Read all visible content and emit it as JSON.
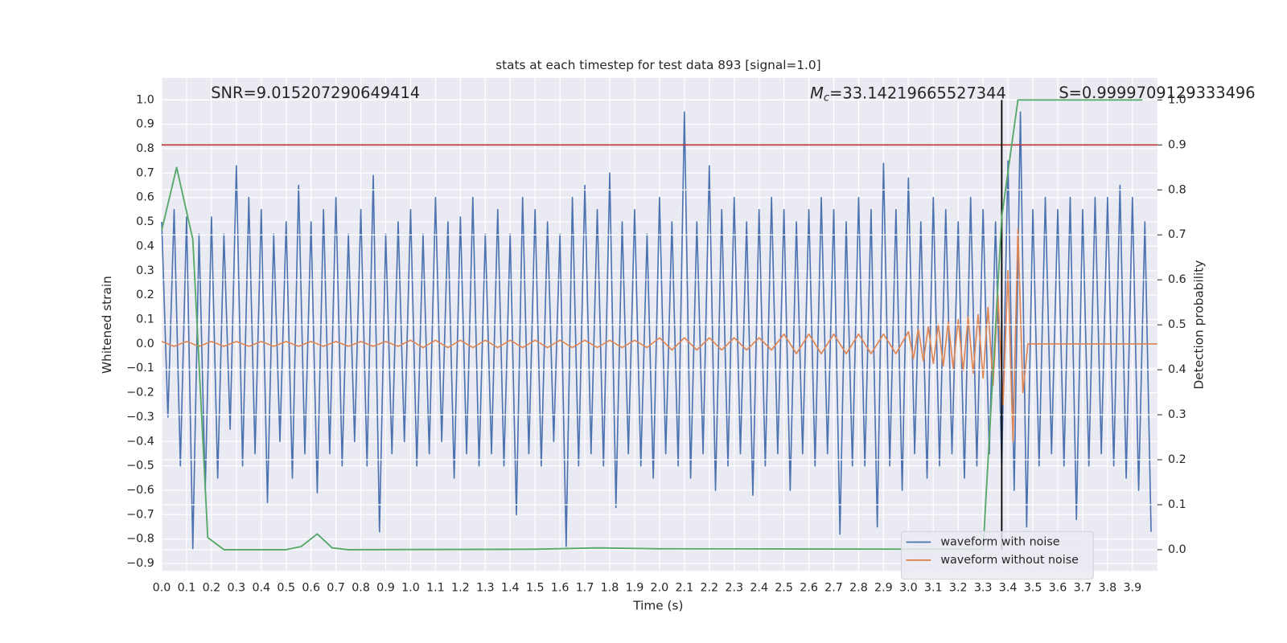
{
  "chart_data": {
    "type": "line",
    "title": "stats at each timestep for test data 893 [signal=1.0]",
    "x_label": "Time (s)",
    "y_label": "Whitened strain",
    "y2_label": "Detection probability",
    "snr_text": "SNR=9.015207290649414",
    "mc_symbol": "M",
    "mc_subscript": "c",
    "mc_value": "=33.14219665527344",
    "s_text": "S=0.9999709129333496",
    "xlim": [
      0,
      4.0
    ],
    "ylim": [
      -0.93,
      1.09
    ],
    "y2lim": [
      -0.047,
      1.049
    ],
    "grid": true,
    "legend": "lower right",
    "threshold": {
      "y2": 0.9,
      "color": "#c03434"
    },
    "marker_time": {
      "x": 3.375,
      "color": "#000000"
    },
    "xticks": [
      {
        "value": 0,
        "label": "0.0"
      },
      {
        "value": 0.1,
        "label": "0.1"
      },
      {
        "value": 0.2,
        "label": "0.2"
      },
      {
        "value": 0.3,
        "label": "0.3"
      },
      {
        "value": 0.4,
        "label": "0.4"
      },
      {
        "value": 0.5,
        "label": "0.5"
      },
      {
        "value": 0.6,
        "label": "0.6"
      },
      {
        "value": 0.7,
        "label": "0.7"
      },
      {
        "value": 0.8,
        "label": "0.8"
      },
      {
        "value": 0.9,
        "label": "0.9"
      },
      {
        "value": 1,
        "label": "1.0"
      },
      {
        "value": 1.1,
        "label": "1.1"
      },
      {
        "value": 1.2,
        "label": "1.2"
      },
      {
        "value": 1.3,
        "label": "1.3"
      },
      {
        "value": 1.4,
        "label": "1.4"
      },
      {
        "value": 1.5,
        "label": "1.5"
      },
      {
        "value": 1.6,
        "label": "1.6"
      },
      {
        "value": 1.7,
        "label": "1.7"
      },
      {
        "value": 1.8,
        "label": "1.8"
      },
      {
        "value": 1.9,
        "label": "1.9"
      },
      {
        "value": 2,
        "label": "2.0"
      },
      {
        "value": 2.1,
        "label": "2.1"
      },
      {
        "value": 2.2,
        "label": "2.2"
      },
      {
        "value": 2.3,
        "label": "2.3"
      },
      {
        "value": 2.4,
        "label": "2.4"
      },
      {
        "value": 2.5,
        "label": "2.5"
      },
      {
        "value": 2.6,
        "label": "2.6"
      },
      {
        "value": 2.7,
        "label": "2.7"
      },
      {
        "value": 2.8,
        "label": "2.8"
      },
      {
        "value": 2.9,
        "label": "2.9"
      },
      {
        "value": 3,
        "label": "3.0"
      },
      {
        "value": 3.1,
        "label": "3.1"
      },
      {
        "value": 3.2,
        "label": "3.2"
      },
      {
        "value": 3.3,
        "label": "3.3"
      },
      {
        "value": 3.4,
        "label": "3.4"
      },
      {
        "value": 3.5,
        "label": "3.5"
      },
      {
        "value": 3.6,
        "label": "3.6"
      },
      {
        "value": 3.7,
        "label": "3.7"
      },
      {
        "value": 3.8,
        "label": "3.8"
      },
      {
        "value": 3.9,
        "label": "3.9"
      }
    ],
    "yticks": [
      {
        "value": -0.9,
        "label": "−0.9"
      },
      {
        "value": -0.8,
        "label": "−0.8"
      },
      {
        "value": -0.7,
        "label": "−0.7"
      },
      {
        "value": -0.6,
        "label": "−0.6"
      },
      {
        "value": -0.5,
        "label": "−0.5"
      },
      {
        "value": -0.4,
        "label": "−0.4"
      },
      {
        "value": -0.3,
        "label": "−0.3"
      },
      {
        "value": -0.2,
        "label": "−0.2"
      },
      {
        "value": -0.1,
        "label": "−0.1"
      },
      {
        "value": 0,
        "label": "0.0"
      },
      {
        "value": 0.1,
        "label": "0.1"
      },
      {
        "value": 0.2,
        "label": "0.2"
      },
      {
        "value": 0.3,
        "label": "0.3"
      },
      {
        "value": 0.4,
        "label": "0.4"
      },
      {
        "value": 0.5,
        "label": "0.5"
      },
      {
        "value": 0.6,
        "label": "0.6"
      },
      {
        "value": 0.7,
        "label": "0.7"
      },
      {
        "value": 0.8,
        "label": "0.8"
      },
      {
        "value": 0.9,
        "label": "0.9"
      },
      {
        "value": 1,
        "label": "1.0"
      }
    ],
    "y2ticks": [
      {
        "value": 0,
        "label": "0.0"
      },
      {
        "value": 0.1,
        "label": "0.1"
      },
      {
        "value": 0.2,
        "label": "0.2"
      },
      {
        "value": 0.3,
        "label": "0.3"
      },
      {
        "value": 0.4,
        "label": "0.4"
      },
      {
        "value": 0.5,
        "label": "0.5"
      },
      {
        "value": 0.6,
        "label": "0.6"
      },
      {
        "value": 0.7,
        "label": "0.7"
      },
      {
        "value": 0.8,
        "label": "0.8"
      },
      {
        "value": 0.9,
        "label": "0.9"
      },
      {
        "value": 1,
        "label": "1.0"
      }
    ],
    "x": [
      0,
      0.025,
      0.05,
      0.075,
      0.1,
      0.125,
      0.15,
      0.175,
      0.2,
      0.225,
      0.25,
      0.275,
      0.3,
      0.325,
      0.35,
      0.375,
      0.4,
      0.425,
      0.45,
      0.475,
      0.5,
      0.525,
      0.55,
      0.575,
      0.6,
      0.625,
      0.65,
      0.675,
      0.7,
      0.725,
      0.75,
      0.775,
      0.8,
      0.825,
      0.85,
      0.875,
      0.9,
      0.925,
      0.95,
      0.975,
      1,
      1.025,
      1.05,
      1.075,
      1.1,
      1.125,
      1.15,
      1.175,
      1.2,
      1.225,
      1.25,
      1.275,
      1.3,
      1.325,
      1.35,
      1.375,
      1.4,
      1.425,
      1.45,
      1.475,
      1.5,
      1.525,
      1.55,
      1.575,
      1.6,
      1.625,
      1.65,
      1.675,
      1.7,
      1.725,
      1.75,
      1.775,
      1.8,
      1.825,
      1.85,
      1.875,
      1.9,
      1.925,
      1.95,
      1.975,
      2,
      2.025,
      2.05,
      2.075,
      2.1,
      2.125,
      2.15,
      2.175,
      2.2,
      2.225,
      2.25,
      2.275,
      2.3,
      2.325,
      2.35,
      2.375,
      2.4,
      2.425,
      2.45,
      2.475,
      2.5,
      2.525,
      2.55,
      2.575,
      2.6,
      2.625,
      2.65,
      2.675,
      2.7,
      2.725,
      2.75,
      2.775,
      2.8,
      2.825,
      2.85,
      2.875,
      2.9,
      2.925,
      2.95,
      2.975,
      3,
      3.025,
      3.05,
      3.075,
      3.1,
      3.125,
      3.15,
      3.175,
      3.2,
      3.225,
      3.25,
      3.275,
      3.3,
      3.325,
      3.35,
      3.375,
      3.4,
      3.425,
      3.45,
      3.475,
      3.5,
      3.525,
      3.55,
      3.575,
      3.6,
      3.625,
      3.65,
      3.675,
      3.7,
      3.725,
      3.75,
      3.775,
      3.8,
      3.825,
      3.85,
      3.875,
      3.9,
      3.925,
      3.95,
      3.975
    ],
    "series": [
      {
        "name": "waveform with noise",
        "color": "#4c72b0",
        "values": [
          0.5,
          -0.3,
          0.55,
          -0.5,
          0.52,
          -0.84,
          0.45,
          -0.6,
          0.52,
          -0.55,
          0.45,
          -0.35,
          0.73,
          -0.5,
          0.6,
          -0.45,
          0.55,
          -0.65,
          0.45,
          -0.4,
          0.5,
          -0.55,
          0.65,
          -0.45,
          0.5,
          -0.61,
          0.55,
          -0.45,
          0.6,
          -0.5,
          0.45,
          -0.4,
          0.55,
          -0.5,
          0.69,
          -0.77,
          0.45,
          -0.45,
          0.5,
          -0.4,
          0.55,
          -0.5,
          0.45,
          -0.45,
          0.6,
          -0.4,
          0.5,
          -0.55,
          0.52,
          -0.45,
          0.6,
          -0.5,
          0.45,
          -0.45,
          0.55,
          -0.5,
          0.45,
          -0.7,
          0.6,
          -0.45,
          0.55,
          -0.5,
          0.5,
          -0.4,
          0.45,
          -0.83,
          0.6,
          -0.5,
          0.65,
          -0.45,
          0.55,
          -0.5,
          0.7,
          -0.67,
          0.5,
          -0.45,
          0.55,
          -0.5,
          0.45,
          -0.55,
          0.6,
          -0.45,
          0.5,
          -0.5,
          0.95,
          -0.55,
          0.5,
          -0.45,
          0.73,
          -0.6,
          0.55,
          -0.5,
          0.6,
          -0.45,
          0.5,
          -0.62,
          0.55,
          -0.5,
          0.6,
          -0.45,
          0.55,
          -0.6,
          0.5,
          -0.45,
          0.55,
          -0.5,
          0.6,
          -0.45,
          0.55,
          -0.78,
          0.5,
          -0.5,
          0.6,
          -0.5,
          0.55,
          -0.75,
          0.74,
          -0.5,
          0.55,
          -0.6,
          0.68,
          -0.45,
          0.5,
          -0.55,
          0.6,
          -0.5,
          0.55,
          -0.45,
          0.5,
          -0.55,
          0.6,
          -0.5,
          0.55,
          -0.45,
          0.5,
          -0.5,
          0.75,
          -0.6,
          0.95,
          -0.75,
          0.55,
          -0.5,
          0.6,
          -0.45,
          0.55,
          -0.5,
          0.6,
          -0.72,
          0.55,
          -0.5,
          0.6,
          -0.45,
          0.6,
          -0.5,
          0.65,
          -0.55,
          0.6,
          -0.6,
          0.5,
          -0.77
        ]
      },
      {
        "name": "waveform without noise",
        "color": "#dd8452",
        "x": [
          0,
          0.05,
          0.1,
          0.15,
          0.2,
          0.25,
          0.3,
          0.35,
          0.4,
          0.45,
          0.5,
          0.55,
          0.6,
          0.65,
          0.7,
          0.75,
          0.8,
          0.85,
          0.9,
          0.95,
          1,
          1.05,
          1.1,
          1.15,
          1.2,
          1.25,
          1.3,
          1.35,
          1.4,
          1.45,
          1.5,
          1.55,
          1.6,
          1.65,
          1.7,
          1.75,
          1.8,
          1.85,
          1.9,
          1.95,
          2,
          2.05,
          2.1,
          2.15,
          2.2,
          2.25,
          2.3,
          2.35,
          2.4,
          2.45,
          2.5,
          2.55,
          2.6,
          2.65,
          2.7,
          2.75,
          2.8,
          2.85,
          2.9,
          2.95,
          3,
          3.02,
          3.04,
          3.06,
          3.08,
          3.1,
          3.12,
          3.14,
          3.16,
          3.18,
          3.2,
          3.22,
          3.24,
          3.26,
          3.28,
          3.3,
          3.32,
          3.34,
          3.36,
          3.38,
          3.4,
          3.42,
          3.44,
          3.46,
          3.48,
          4.0
        ],
        "values": [
          0.01,
          -0.01,
          0.01,
          -0.01,
          0.01,
          -0.01,
          0.01,
          -0.01,
          0.01,
          -0.01,
          0.01,
          -0.01,
          0.01,
          -0.01,
          0.01,
          -0.01,
          0.01,
          -0.01,
          0.01,
          -0.01,
          0.015,
          -0.015,
          0.015,
          -0.015,
          0.015,
          -0.015,
          0.015,
          -0.015,
          0.015,
          -0.015,
          0.015,
          -0.015,
          0.015,
          -0.015,
          0.015,
          -0.015,
          0.015,
          -0.015,
          0.015,
          -0.015,
          0.025,
          -0.025,
          0.025,
          -0.025,
          0.025,
          -0.025,
          0.025,
          -0.025,
          0.025,
          -0.025,
          0.04,
          -0.04,
          0.04,
          -0.04,
          0.04,
          -0.04,
          0.04,
          -0.04,
          0.04,
          -0.04,
          0.05,
          -0.06,
          0.06,
          -0.07,
          0.07,
          -0.08,
          0.08,
          -0.09,
          0.09,
          -0.1,
          0.1,
          -0.11,
          0.11,
          -0.12,
          0.12,
          -0.14,
          0.15,
          -0.17,
          0.2,
          -0.25,
          0.3,
          -0.4,
          0.47,
          -0.2,
          0,
          0
        ]
      },
      {
        "color": "#55a868",
        "axis": "y2",
        "x": [
          0,
          0.06,
          0.125,
          0.185,
          0.25,
          0.5,
          0.56,
          0.625,
          0.685,
          0.75,
          1.5,
          1.75,
          2.0,
          3.3,
          3.375,
          3.44,
          3.94
        ],
        "values": [
          0.71,
          0.85,
          0.69,
          0.027,
          0,
          0,
          0.007,
          0.035,
          0.004,
          0,
          0.001,
          0.004,
          0.002,
          0.001,
          0.74,
          1.0,
          1.0
        ]
      }
    ]
  }
}
